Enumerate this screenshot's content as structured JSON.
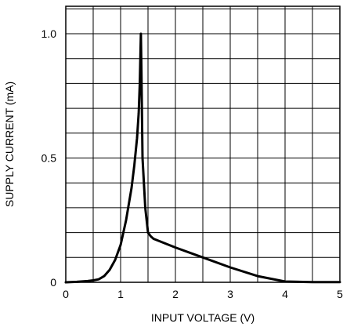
{
  "chart_data": {
    "type": "line",
    "xlabel": "INPUT VOLTAGE (V)",
    "ylabel": "SUPPLY CURRENT (mA)",
    "xlim": [
      0,
      5
    ],
    "ylim": [
      0,
      1.0
    ],
    "x_ticks": [
      0,
      1,
      2,
      3,
      4,
      5
    ],
    "x_tick_labels": [
      "0",
      "1",
      "2",
      "3",
      "4",
      "5"
    ],
    "y_ticks": [
      0,
      0.5,
      1.0
    ],
    "y_tick_labels": [
      "0",
      "0.5",
      "1.0"
    ],
    "x_grid": [
      0,
      0.5,
      1,
      1.5,
      2,
      2.5,
      3,
      3.5,
      4,
      4.5,
      5
    ],
    "y_grid": [
      0,
      0.1,
      0.2,
      0.3,
      0.4,
      0.5,
      0.6,
      0.7,
      0.8,
      0.9,
      1.0,
      1.1
    ],
    "grid": true,
    "line_color": "#000000",
    "series": [
      {
        "x": [
          0,
          0.2,
          0.4,
          0.5,
          0.6,
          0.7,
          0.8,
          0.9,
          1.0,
          1.1,
          1.2,
          1.25,
          1.3,
          1.33,
          1.35,
          1.36,
          1.37,
          1.38,
          1.4,
          1.45,
          1.5,
          1.55,
          1.6,
          2.0,
          2.5,
          3.0,
          3.5,
          4.0,
          4.5,
          5.0
        ],
        "y": [
          0,
          0.002,
          0.005,
          0.008,
          0.012,
          0.025,
          0.05,
          0.09,
          0.15,
          0.25,
          0.38,
          0.47,
          0.58,
          0.68,
          0.8,
          0.9,
          1.0,
          0.85,
          0.5,
          0.3,
          0.2,
          0.185,
          0.175,
          0.14,
          0.1,
          0.06,
          0.025,
          0.003,
          0.001,
          0.001
        ]
      }
    ]
  }
}
